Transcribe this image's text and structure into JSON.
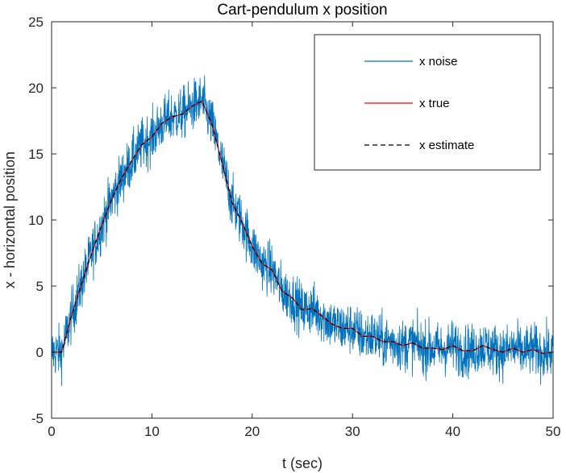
{
  "chart_data": {
    "type": "line",
    "title": "Cart-pendulum x position",
    "xlabel": "t (sec)",
    "ylabel": "x - horizontal position",
    "xlim": [
      0,
      50
    ],
    "ylim": [
      -5,
      25
    ],
    "xticks": [
      0,
      10,
      20,
      30,
      40,
      50
    ],
    "yticks": [
      -5,
      0,
      5,
      10,
      15,
      20,
      25
    ],
    "grid": false,
    "legend_position": "top-right",
    "x": [
      0,
      1,
      2,
      3,
      4,
      5,
      6,
      7,
      8,
      9,
      10,
      11,
      12,
      13,
      14,
      15,
      16,
      17,
      18,
      19,
      20,
      21,
      22,
      23,
      24,
      25,
      26,
      27,
      28,
      29,
      30,
      31,
      32,
      33,
      34,
      35,
      36,
      37,
      38,
      39,
      40,
      41,
      42,
      43,
      44,
      45,
      46,
      47,
      48,
      49,
      50
    ],
    "series": [
      {
        "name": "x noise",
        "color": "#0072BD",
        "style": "solid",
        "noise_amplitude": 1.8,
        "values": [
          0,
          0,
          2.8,
          5.2,
          7.5,
          9.6,
          11.6,
          13.2,
          14.5,
          15.7,
          16.3,
          17.3,
          17.8,
          18.0,
          18.6,
          19.0,
          17.2,
          14.3,
          11.3,
          9.8,
          8.0,
          6.7,
          6.2,
          4.6,
          4.1,
          3.2,
          3.3,
          2.7,
          2.1,
          1.8,
          1.8,
          1.2,
          1.2,
          0.8,
          0.8,
          0.5,
          0.7,
          0.3,
          0.3,
          0.2,
          0.5,
          0.1,
          0.1,
          0.5,
          0.2,
          0.0,
          0.3,
          0.0,
          0.2,
          -0.1,
          0.0
        ]
      },
      {
        "name": "x true",
        "color": "#FF0000",
        "style": "solid",
        "values": [
          0,
          0,
          2.8,
          5.2,
          7.5,
          9.6,
          11.6,
          13.2,
          14.5,
          15.7,
          16.3,
          17.3,
          17.8,
          18.0,
          18.6,
          19.0,
          17.2,
          14.3,
          11.3,
          9.8,
          8.0,
          6.7,
          6.2,
          4.6,
          4.1,
          3.2,
          3.3,
          2.7,
          2.1,
          1.8,
          1.8,
          1.2,
          1.2,
          0.8,
          0.8,
          0.5,
          0.7,
          0.3,
          0.3,
          0.2,
          0.5,
          0.1,
          0.1,
          0.5,
          0.2,
          0.0,
          0.3,
          0.0,
          0.2,
          -0.1,
          0.0
        ]
      },
      {
        "name": "x estimate",
        "color": "#000000",
        "style": "dashed",
        "values": [
          0,
          0,
          2.8,
          5.2,
          7.5,
          9.6,
          11.6,
          13.2,
          14.5,
          15.7,
          16.3,
          17.3,
          17.8,
          18.0,
          18.6,
          19.0,
          17.2,
          14.3,
          11.3,
          9.8,
          8.0,
          6.7,
          6.2,
          4.6,
          4.1,
          3.2,
          3.3,
          2.7,
          2.1,
          1.8,
          1.8,
          1.2,
          1.2,
          0.8,
          0.8,
          0.5,
          0.7,
          0.3,
          0.3,
          0.2,
          0.5,
          0.1,
          0.1,
          0.5,
          0.2,
          0.0,
          0.3,
          0.0,
          0.2,
          -0.1,
          0.0
        ]
      }
    ]
  }
}
